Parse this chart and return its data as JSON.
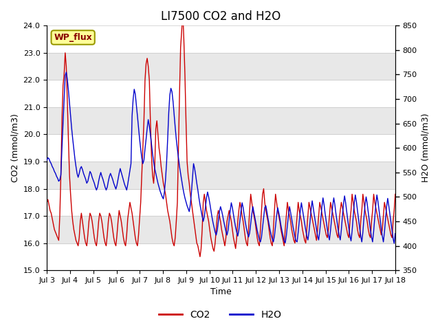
{
  "title": "LI7500 CO2 and H2O",
  "xlabel": "Time",
  "ylabel_left": "CO2 (mmol/m3)",
  "ylabel_right": "H2O (mmol/m3)",
  "ylim_left": [
    15.0,
    24.0
  ],
  "ylim_right": [
    350,
    850
  ],
  "yticks_left": [
    15.0,
    16.0,
    17.0,
    18.0,
    19.0,
    20.0,
    21.0,
    22.0,
    23.0,
    24.0
  ],
  "yticks_right": [
    350,
    400,
    450,
    500,
    550,
    600,
    650,
    700,
    750,
    800,
    850
  ],
  "xtick_labels": [
    "Jul 3",
    "Jul 4",
    "Jul 5",
    "Jul 6",
    "Jul 7",
    "Jul 8",
    "Jul 9",
    "Jul 10",
    "Jul 11",
    "Jul 12",
    "Jul 13",
    "Jul 14",
    "Jul 15",
    "Jul 16",
    "Jul 17",
    "Jul 18"
  ],
  "color_co2": "#cc0000",
  "color_h2o": "#0000cc",
  "band_color": "#e8e8e8",
  "background_color": "#ffffff",
  "wp_flux_label": "WP_flux",
  "wp_flux_bg": "#ffff99",
  "wp_flux_border": "#999900",
  "legend_co2": "CO2",
  "legend_h2o": "H2O",
  "title_fontsize": 12,
  "axis_label_fontsize": 9,
  "tick_fontsize": 8,
  "co2_data": [
    17.5,
    17.6,
    17.4,
    17.2,
    17.1,
    16.9,
    16.7,
    16.5,
    16.4,
    16.3,
    16.2,
    16.1,
    17.0,
    18.5,
    20.5,
    21.8,
    22.2,
    23.0,
    22.5,
    21.2,
    19.8,
    18.5,
    17.8,
    17.2,
    16.8,
    16.5,
    16.3,
    16.1,
    16.0,
    15.9,
    16.2,
    16.8,
    17.1,
    16.8,
    16.5,
    16.2,
    16.0,
    15.9,
    16.3,
    16.8,
    17.1,
    17.0,
    16.8,
    16.5,
    16.2,
    16.0,
    15.9,
    16.3,
    16.8,
    17.1,
    17.0,
    16.8,
    16.5,
    16.2,
    16.0,
    15.9,
    16.3,
    16.8,
    17.1,
    17.0,
    16.8,
    16.5,
    16.2,
    16.0,
    15.9,
    16.3,
    16.8,
    17.2,
    17.0,
    16.8,
    16.5,
    16.2,
    16.0,
    15.9,
    16.3,
    16.9,
    17.2,
    17.5,
    17.3,
    17.1,
    16.8,
    16.5,
    16.2,
    16.0,
    15.9,
    16.3,
    16.9,
    17.5,
    18.5,
    19.5,
    20.5,
    22.0,
    22.6,
    22.8,
    22.5,
    22.0,
    20.5,
    19.2,
    18.5,
    18.2,
    18.8,
    20.2,
    20.5,
    20.0,
    19.5,
    19.2,
    18.8,
    18.5,
    18.2,
    18.0,
    17.8,
    17.5,
    17.2,
    17.0,
    16.8,
    16.5,
    16.2,
    16.0,
    15.9,
    16.2,
    16.8,
    17.5,
    19.5,
    21.5,
    23.2,
    23.8,
    24.5,
    23.5,
    22.2,
    20.5,
    19.0,
    18.5,
    18.2,
    17.8,
    17.5,
    17.2,
    16.9,
    16.6,
    16.3,
    16.0,
    15.9,
    15.7,
    15.5,
    15.8,
    16.5,
    17.5,
    17.8,
    17.5,
    17.2,
    17.0,
    16.8,
    16.5,
    16.2,
    16.0,
    15.8,
    15.7,
    16.0,
    16.5,
    17.0,
    17.2,
    17.0,
    16.8,
    16.5,
    16.3,
    16.1,
    15.9,
    16.2,
    16.8,
    17.0,
    17.2,
    17.0,
    16.8,
    16.5,
    16.2,
    16.0,
    15.8,
    16.2,
    16.8,
    17.2,
    17.5,
    17.3,
    17.0,
    16.8,
    16.5,
    16.2,
    16.0,
    15.9,
    16.5,
    17.2,
    17.8,
    17.5,
    17.2,
    17.0,
    16.8,
    16.5,
    16.2,
    16.0,
    15.9,
    16.5,
    17.2,
    17.8,
    18.0,
    17.5,
    17.2,
    17.0,
    16.8,
    16.5,
    16.2,
    16.0,
    15.9,
    16.5,
    17.2,
    17.8,
    17.5,
    17.2,
    17.0,
    16.8,
    16.5,
    16.3,
    16.1,
    15.9,
    16.5,
    17.0,
    17.5,
    17.2,
    17.0,
    16.8,
    16.5,
    16.3,
    16.1,
    16.0,
    16.5,
    17.0,
    17.5,
    17.2,
    17.0,
    16.8,
    16.5,
    16.3,
    16.1,
    16.0,
    16.5,
    17.0,
    17.5,
    17.3,
    17.1,
    16.9,
    16.7,
    16.5,
    16.3,
    16.1,
    16.5,
    17.0,
    17.5,
    17.3,
    17.1,
    16.9,
    16.7,
    16.5,
    16.3,
    16.2,
    16.5,
    17.0,
    17.5,
    17.3,
    17.1,
    16.9,
    16.7,
    16.5,
    16.3,
    16.2,
    16.8,
    17.2,
    17.5,
    17.3,
    17.1,
    16.9,
    16.7,
    16.5,
    16.3,
    16.2,
    16.8,
    17.2,
    17.8,
    17.5,
    17.2,
    17.0,
    16.8,
    16.5,
    16.3,
    16.2,
    16.8,
    17.2,
    17.8,
    17.5,
    17.2,
    17.0,
    16.8,
    16.5,
    16.3,
    16.2,
    16.8,
    17.2,
    17.8,
    17.5,
    17.3,
    17.1,
    16.9,
    16.7,
    16.5,
    16.3,
    16.5,
    17.0,
    17.5,
    17.3,
    17.1,
    16.9,
    16.7,
    16.5,
    16.3,
    16.2,
    16.8,
    17.2,
    17.8
  ],
  "h2o_data": [
    575,
    580,
    578,
    572,
    568,
    562,
    558,
    552,
    548,
    542,
    538,
    532,
    535,
    545,
    600,
    650,
    700,
    748,
    755,
    740,
    718,
    692,
    665,
    640,
    618,
    598,
    578,
    562,
    548,
    540,
    548,
    558,
    562,
    556,
    548,
    542,
    536,
    528,
    532,
    542,
    552,
    548,
    540,
    534,
    528,
    520,
    514,
    520,
    532,
    542,
    550,
    542,
    536,
    528,
    520,
    514,
    520,
    532,
    542,
    548,
    542,
    536,
    528,
    522,
    516,
    524,
    536,
    548,
    558,
    550,
    542,
    534,
    526,
    520,
    514,
    526,
    540,
    555,
    568,
    665,
    700,
    720,
    710,
    688,
    665,
    642,
    618,
    598,
    580,
    568,
    575,
    598,
    618,
    640,
    658,
    645,
    628,
    608,
    588,
    572,
    558,
    548,
    538,
    528,
    520,
    512,
    506,
    500,
    496,
    510,
    535,
    570,
    618,
    672,
    708,
    722,
    715,
    695,
    668,
    642,
    618,
    598,
    580,
    562,
    548,
    534,
    520,
    508,
    498,
    490,
    482,
    476,
    470,
    484,
    508,
    538,
    568,
    558,
    544,
    528,
    514,
    498,
    484,
    472,
    460,
    450,
    460,
    478,
    498,
    510,
    500,
    488,
    474,
    460,
    448,
    438,
    428,
    422,
    432,
    450,
    470,
    480,
    472,
    462,
    450,
    440,
    430,
    422,
    432,
    452,
    472,
    488,
    478,
    464,
    450,
    438,
    428,
    420,
    432,
    452,
    472,
    488,
    478,
    462,
    448,
    436,
    426,
    418,
    426,
    445,
    465,
    480,
    468,
    456,
    444,
    432,
    422,
    412,
    408,
    418,
    438,
    458,
    478,
    482,
    470,
    456,
    444,
    432,
    422,
    414,
    408,
    420,
    440,
    462,
    478,
    468,
    456,
    442,
    430,
    420,
    410,
    406,
    420,
    442,
    462,
    480,
    468,
    455,
    442,
    430,
    418,
    410,
    408,
    428,
    450,
    472,
    488,
    474,
    460,
    446,
    432,
    420,
    412,
    428,
    450,
    474,
    492,
    478,
    462,
    448,
    434,
    420,
    412,
    430,
    454,
    480,
    498,
    484,
    466,
    450,
    434,
    422,
    412,
    432,
    456,
    482,
    498,
    484,
    466,
    450,
    434,
    422,
    412,
    432,
    460,
    485,
    502,
    488,
    470,
    452,
    436,
    420,
    410,
    430,
    460,
    488,
    504,
    490,
    472,
    454,
    436,
    420,
    408,
    428,
    458,
    485,
    500,
    486,
    468,
    450,
    432,
    418,
    408,
    430,
    458,
    485,
    504,
    490,
    472,
    454,
    436,
    420,
    408,
    428,
    455,
    480,
    497,
    482,
    465,
    447,
    430,
    415,
    405,
    425
  ]
}
